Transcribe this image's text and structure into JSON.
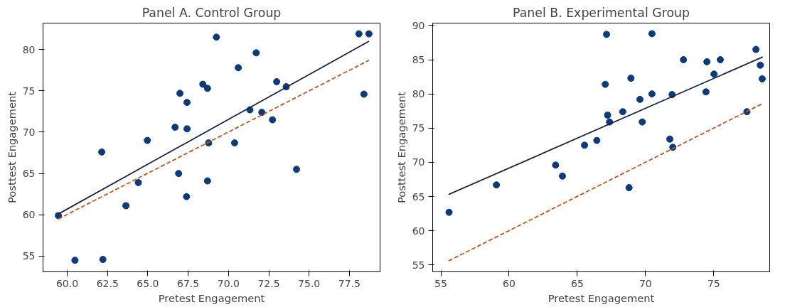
{
  "chart_data": [
    {
      "type": "scatter",
      "title": "Panel A. Control Group",
      "xlabel": "Pretest Engagement",
      "ylabel": "Posttest Engagement",
      "xlim": [
        58.5,
        79.4
      ],
      "ylim": [
        53.1,
        83.2
      ],
      "xticks": [
        {
          "value": 60,
          "label": "60.0"
        },
        {
          "value": 62.5,
          "label": "62.5"
        },
        {
          "value": 65,
          "label": "65.0"
        },
        {
          "value": 67.5,
          "label": "67.5"
        },
        {
          "value": 70,
          "label": "70.0"
        },
        {
          "value": 72.5,
          "label": "72.5"
        },
        {
          "value": 75,
          "label": "75.0"
        },
        {
          "value": 77.5,
          "label": "77.5"
        }
      ],
      "yticks": [
        55,
        60,
        65,
        70,
        75,
        80
      ],
      "grid": false,
      "series": [
        {
          "marker": "circle",
          "color": "#0d3a78",
          "x": [
            59.45,
            60.48,
            62.14,
            62.21,
            63.64,
            64.41,
            64.97,
            66.69,
            66.91,
            66.99,
            67.43,
            67.43,
            67.4,
            68.41,
            68.7,
            68.77,
            68.7,
            69.25,
            70.38,
            70.61,
            71.33,
            71.72,
            72.07,
            72.73,
            72.99,
            73.58,
            74.22,
            78.09,
            78.4,
            78.71
          ],
          "values": [
            59.9,
            54.5,
            67.6,
            54.6,
            61.1,
            63.9,
            69.0,
            70.6,
            65.0,
            74.7,
            73.6,
            70.4,
            62.2,
            75.8,
            75.3,
            68.7,
            64.1,
            81.5,
            68.7,
            77.8,
            72.7,
            79.6,
            72.4,
            71.5,
            76.1,
            75.5,
            65.5,
            81.9,
            74.6,
            81.9
          ]
        },
        {
          "type": "line",
          "color": "#1a2342",
          "line_style": "solid",
          "x": [
            59.45,
            78.71
          ],
          "values": [
            60.1,
            81.0
          ]
        },
        {
          "type": "line",
          "color": "#c0561f",
          "line_style": "dashed",
          "x": [
            59.45,
            78.71
          ],
          "values": [
            59.5,
            78.7
          ]
        }
      ]
    },
    {
      "type": "scatter",
      "title": "Panel B. Experimental Group",
      "xlabel": "Pretest Engagement",
      "ylabel": "Posttest Engagement",
      "xlim": [
        54.4,
        79.1
      ],
      "ylim": [
        54.0,
        90.35
      ],
      "xticks": [
        55,
        60,
        65,
        70,
        75
      ],
      "yticks": [
        55,
        60,
        65,
        70,
        75,
        80,
        85,
        90
      ],
      "grid": false,
      "series": [
        {
          "marker": "circle",
          "color": "#0d3a78",
          "x": [
            55.6,
            59.07,
            63.41,
            63.91,
            65.53,
            66.43,
            67.14,
            67.05,
            67.22,
            67.36,
            68.33,
            68.79,
            68.93,
            69.59,
            69.76,
            70.47,
            70.47,
            71.78,
            72.0,
            71.95,
            72.78,
            74.43,
            74.5,
            75.02,
            75.48,
            77.43,
            78.09,
            78.41,
            78.55
          ],
          "values": [
            62.7,
            66.7,
            69.6,
            68.0,
            72.5,
            73.2,
            88.7,
            81.4,
            76.9,
            75.9,
            77.4,
            66.3,
            82.3,
            79.2,
            75.9,
            88.8,
            80.0,
            73.4,
            72.2,
            79.9,
            85.0,
            80.3,
            84.7,
            82.9,
            85.0,
            77.4,
            86.5,
            84.2,
            82.2
          ]
        },
        {
          "type": "line",
          "color": "#1a2342",
          "line_style": "solid",
          "x": [
            55.57,
            78.59
          ],
          "values": [
            65.3,
            85.4
          ]
        },
        {
          "type": "line",
          "color": "#c0561f",
          "line_style": "dashed",
          "x": [
            55.57,
            78.59
          ],
          "values": [
            55.6,
            78.6
          ]
        }
      ]
    }
  ]
}
